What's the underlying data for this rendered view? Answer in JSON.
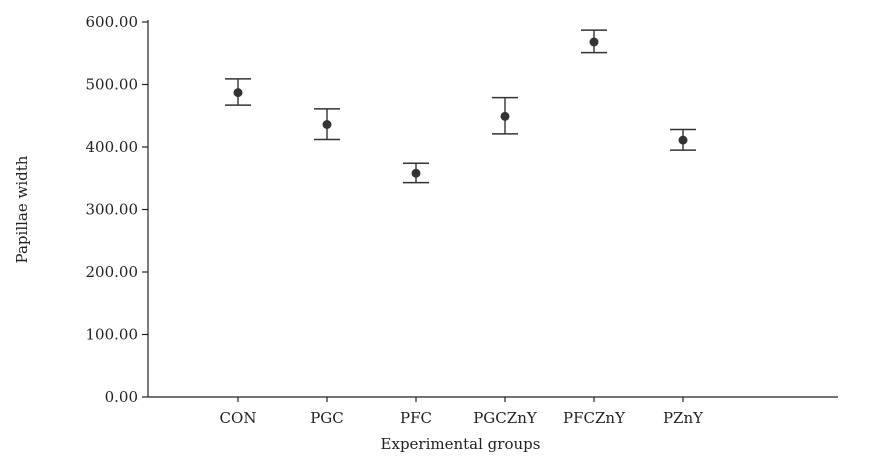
{
  "chart_data": {
    "type": "scatter",
    "title": "",
    "xlabel": "Experimental groups",
    "ylabel": "Papillae width",
    "ylim": [
      0,
      600
    ],
    "y_ticks": [
      "0.00",
      "100.00",
      "200.00",
      "300.00",
      "400.00",
      "500.00",
      "600.00"
    ],
    "grid": false,
    "categories": [
      "CON",
      "PGC",
      "PFC",
      "PGCZnY",
      "PFCZnY",
      "PZnY"
    ],
    "series": [
      {
        "values": [
          487,
          436,
          358,
          449,
          568,
          411
        ],
        "error_low": [
          467,
          412,
          343,
          421,
          551,
          395
        ],
        "error_high": [
          509,
          461,
          374,
          479,
          587,
          428
        ]
      }
    ]
  }
}
